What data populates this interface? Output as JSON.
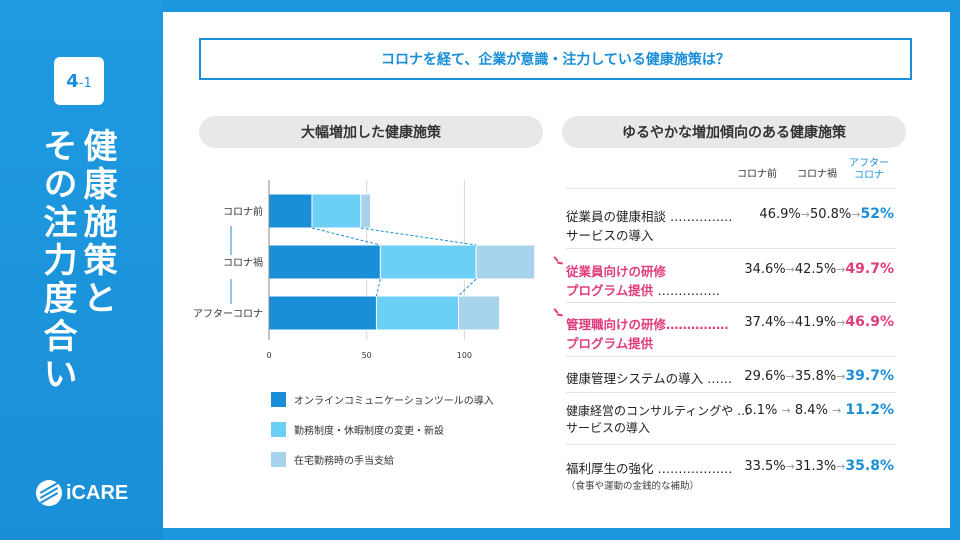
{
  "sidebar": {
    "badge_main": "4",
    "badge_sub": "-1",
    "title_line1": "健康施策と",
    "title_line2": "その注力度合い",
    "logo_text": "iCARE"
  },
  "question": "コロナを経て、企業が意識・注力している健康施策は？",
  "left_panel": {
    "heading": "大幅増加した健康施策"
  },
  "right_panel": {
    "heading": "ゆるやかな増加傾向のある健康施策",
    "col_before": "コロナ前",
    "col_during": "コロナ禍",
    "col_after_1": "アフター",
    "col_after_2": "コロナ",
    "rows": [
      {
        "label1": "従業員の健康相談 ……………",
        "label2": "サービスの導入",
        "v1": "46.9%",
        "v2": "50.8%",
        "v3": "52%",
        "style": "blue"
      },
      {
        "label1": "従業員向けの研修",
        "label2": "プログラム提供",
        "dots": "……………",
        "v1": "34.6%",
        "v2": "42.5%",
        "v3": "49.7%",
        "style": "pink"
      },
      {
        "label1": "管理職向けの研修……………",
        "label2": "プログラム提供",
        "v1": "37.4%",
        "v2": "41.9%",
        "v3": "46.9%",
        "style": "pink"
      },
      {
        "label1": "健康管理システムの導入 ……",
        "v1": "29.6%",
        "v2": "35.8%",
        "v3": "39.7%",
        "style": "blue"
      },
      {
        "label1": "健康経営のコンサルティングや …",
        "label2": "サービスの導入",
        "v1": "6.1%",
        "v2": "8.4%",
        "v3": "11.2%",
        "style": "blue"
      },
      {
        "label1": "福利厚生の強化 ………………",
        "note": "（食事や運動の金銭的な補助）",
        "v1": "33.5%",
        "v2": "31.3%",
        "v3": "35.8%",
        "style": "blue"
      }
    ]
  },
  "chart_data": {
    "type": "bar",
    "orientation": "horizontal",
    "stacked": true,
    "categories": [
      "コロナ前",
      "コロナ禍",
      "アフターコロナ"
    ],
    "series": [
      {
        "name": "オンラインコミュニケーションツールの導入",
        "values": [
          22,
          57,
          55
        ],
        "color": "#1a8fd8"
      },
      {
        "name": "勤務制度・休暇制度の変更・新設",
        "values": [
          25,
          49,
          42
        ],
        "color": "#6ccff6"
      },
      {
        "name": "在宅勤務時の手当支給",
        "values": [
          5,
          30,
          21
        ],
        "color": "#a8d3ec"
      }
    ],
    "xlim": [
      0,
      130
    ],
    "xticks": [
      "0",
      "50",
      "100"
    ],
    "tick_values": [
      0,
      50,
      100
    ],
    "grid": true
  }
}
